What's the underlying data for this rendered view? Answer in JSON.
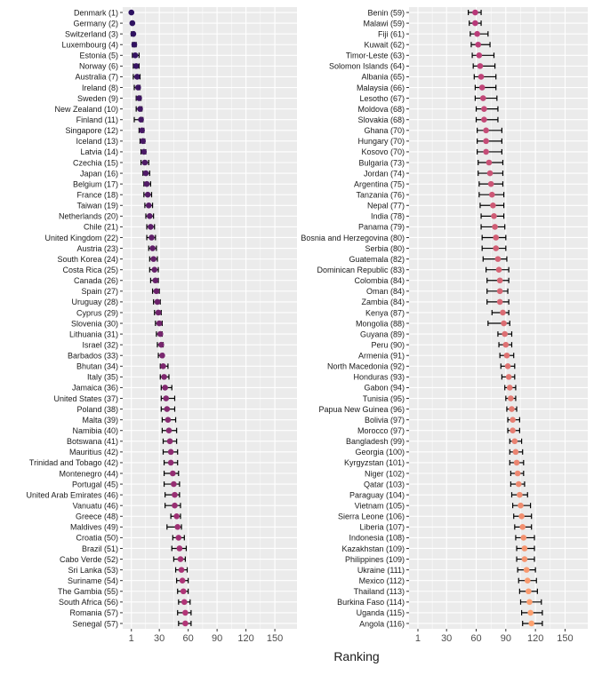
{
  "chart_data": {
    "type": "scatter",
    "xlabel": "Ranking",
    "x_ticks": [
      1,
      30,
      60,
      90,
      120,
      150
    ],
    "xlim": [
      -8,
      173
    ],
    "colors": {
      "panel_background": "#ebebeb",
      "grid": "#ffffff",
      "error_bar": "#000000",
      "gradient_start": "#2c1160",
      "gradient_mid": "#b73779",
      "gradient_end": "#fea16e"
    },
    "panels": [
      {
        "points": [
          {
            "label": "Denmark (1)",
            "value": 1,
            "lower": 1,
            "upper": 1
          },
          {
            "label": "Germany (2)",
            "value": 2,
            "lower": 1,
            "upper": 3
          },
          {
            "label": "Switzerland (3)",
            "value": 3,
            "lower": 1,
            "upper": 4
          },
          {
            "label": "Luxembourg (4)",
            "value": 4,
            "lower": 2,
            "upper": 6
          },
          {
            "label": "Estonia (5)",
            "value": 5,
            "lower": 2,
            "upper": 9
          },
          {
            "label": "Norway (6)",
            "value": 6,
            "lower": 3,
            "upper": 9
          },
          {
            "label": "Australia (7)",
            "value": 7,
            "lower": 3,
            "upper": 10
          },
          {
            "label": "Ireland (8)",
            "value": 8,
            "lower": 4,
            "upper": 10
          },
          {
            "label": "Sweden (9)",
            "value": 9,
            "lower": 6,
            "upper": 11
          },
          {
            "label": "New Zealand (10)",
            "value": 10,
            "lower": 6,
            "upper": 12
          },
          {
            "label": "Finland (11)",
            "value": 11,
            "lower": 4,
            "upper": 13
          },
          {
            "label": "Singapore (12)",
            "value": 12,
            "lower": 9,
            "upper": 14
          },
          {
            "label": "Iceland (13)",
            "value": 13,
            "lower": 10,
            "upper": 15
          },
          {
            "label": "Latvia (14)",
            "value": 14,
            "lower": 11,
            "upper": 16
          },
          {
            "label": "Czechia (15)",
            "value": 15,
            "lower": 11,
            "upper": 19
          },
          {
            "label": "Japan (16)",
            "value": 16,
            "lower": 13,
            "upper": 20
          },
          {
            "label": "Belgium (17)",
            "value": 17,
            "lower": 14,
            "upper": 21
          },
          {
            "label": "France (18)",
            "value": 18,
            "lower": 14,
            "upper": 22
          },
          {
            "label": "Taiwan (19)",
            "value": 19,
            "lower": 15,
            "upper": 23
          },
          {
            "label": "Netherlands (20)",
            "value": 20,
            "lower": 16,
            "upper": 24
          },
          {
            "label": "Chile (21)",
            "value": 21,
            "lower": 17,
            "upper": 25
          },
          {
            "label": "United Kingdom (22)",
            "value": 22,
            "lower": 17,
            "upper": 26
          },
          {
            "label": "Austria (23)",
            "value": 23,
            "lower": 19,
            "upper": 27
          },
          {
            "label": "South Korea (24)",
            "value": 24,
            "lower": 20,
            "upper": 28
          },
          {
            "label": "Costa Rica (25)",
            "value": 25,
            "lower": 20,
            "upper": 29
          },
          {
            "label": "Canada (26)",
            "value": 26,
            "lower": 21,
            "upper": 29
          },
          {
            "label": "Spain (27)",
            "value": 27,
            "lower": 23,
            "upper": 30
          },
          {
            "label": "Uruguay (28)",
            "value": 28,
            "lower": 24,
            "upper": 31
          },
          {
            "label": "Cyprus (29)",
            "value": 29,
            "lower": 25,
            "upper": 32
          },
          {
            "label": "Slovenia (30)",
            "value": 30,
            "lower": 26,
            "upper": 33
          },
          {
            "label": "Lithuania (31)",
            "value": 31,
            "lower": 27,
            "upper": 33
          },
          {
            "label": "Israel (32)",
            "value": 32,
            "lower": 28,
            "upper": 34
          },
          {
            "label": "Barbados (33)",
            "value": 33,
            "lower": 29,
            "upper": 34
          },
          {
            "label": "Bhutan (34)",
            "value": 34,
            "lower": 31,
            "upper": 39
          },
          {
            "label": "Italy (35)",
            "value": 35,
            "lower": 31,
            "upper": 40
          },
          {
            "label": "Jamaica (36)",
            "value": 36,
            "lower": 32,
            "upper": 43
          },
          {
            "label": "United States (37)",
            "value": 37,
            "lower": 32,
            "upper": 46
          },
          {
            "label": "Poland (38)",
            "value": 38,
            "lower": 32,
            "upper": 46
          },
          {
            "label": "Malta (39)",
            "value": 39,
            "lower": 33,
            "upper": 47
          },
          {
            "label": "Namibia (40)",
            "value": 40,
            "lower": 33,
            "upper": 48
          },
          {
            "label": "Botswana (41)",
            "value": 41,
            "lower": 34,
            "upper": 48
          },
          {
            "label": "Mauritius (42)",
            "value": 42,
            "lower": 34,
            "upper": 49
          },
          {
            "label": "Trinidad and Tobago (42)",
            "value": 42,
            "lower": 35,
            "upper": 49
          },
          {
            "label": "Montenegro (44)",
            "value": 44,
            "lower": 35,
            "upper": 50
          },
          {
            "label": "Portugal (45)",
            "value": 45,
            "lower": 35,
            "upper": 51
          },
          {
            "label": "United Arab Emirates (46)",
            "value": 46,
            "lower": 36,
            "upper": 51
          },
          {
            "label": "Vanuatu (46)",
            "value": 46,
            "lower": 36,
            "upper": 52
          },
          {
            "label": "Greece (48)",
            "value": 48,
            "lower": 42,
            "upper": 52
          },
          {
            "label": "Maldives (49)",
            "value": 49,
            "lower": 38,
            "upper": 53
          },
          {
            "label": "Croatia (50)",
            "value": 50,
            "lower": 44,
            "upper": 56
          },
          {
            "label": "Brazil (51)",
            "value": 51,
            "lower": 43,
            "upper": 58
          },
          {
            "label": "Cabo Verde (52)",
            "value": 52,
            "lower": 45,
            "upper": 57
          },
          {
            "label": "Sri Lanka (53)",
            "value": 53,
            "lower": 47,
            "upper": 59
          },
          {
            "label": "Suriname (54)",
            "value": 54,
            "lower": 48,
            "upper": 60
          },
          {
            "label": "The Gambia (55)",
            "value": 55,
            "lower": 49,
            "upper": 60
          },
          {
            "label": "South Africa (56)",
            "value": 56,
            "lower": 50,
            "upper": 62
          },
          {
            "label": "Romania (57)",
            "value": 57,
            "lower": 49,
            "upper": 63
          },
          {
            "label": "Senegal (57)",
            "value": 57,
            "lower": 50,
            "upper": 63
          }
        ]
      },
      {
        "points": [
          {
            "label": "Benin (59)",
            "value": 59,
            "lower": 52,
            "upper": 65
          },
          {
            "label": "Malawi (59)",
            "value": 59,
            "lower": 53,
            "upper": 65
          },
          {
            "label": "Fiji (61)",
            "value": 61,
            "lower": 54,
            "upper": 72
          },
          {
            "label": "Kuwait (62)",
            "value": 62,
            "lower": 55,
            "upper": 74
          },
          {
            "label": "Timor-Leste (63)",
            "value": 63,
            "lower": 56,
            "upper": 78
          },
          {
            "label": "Solomon Islands (64)",
            "value": 64,
            "lower": 57,
            "upper": 79
          },
          {
            "label": "Albania (65)",
            "value": 65,
            "lower": 58,
            "upper": 80
          },
          {
            "label": "Malaysia (66)",
            "value": 66,
            "lower": 59,
            "upper": 80
          },
          {
            "label": "Lesotho (67)",
            "value": 67,
            "lower": 59,
            "upper": 81
          },
          {
            "label": "Moldova (68)",
            "value": 68,
            "lower": 60,
            "upper": 82
          },
          {
            "label": "Slovakia (68)",
            "value": 68,
            "lower": 60,
            "upper": 82
          },
          {
            "label": "Ghana (70)",
            "value": 70,
            "lower": 61,
            "upper": 86
          },
          {
            "label": "Hungary (70)",
            "value": 70,
            "lower": 61,
            "upper": 86
          },
          {
            "label": "Kosovo (70)",
            "value": 70,
            "lower": 61,
            "upper": 86
          },
          {
            "label": "Bulgaria (73)",
            "value": 73,
            "lower": 62,
            "upper": 87
          },
          {
            "label": "Jordan (74)",
            "value": 74,
            "lower": 62,
            "upper": 87
          },
          {
            "label": "Argentina (75)",
            "value": 75,
            "lower": 63,
            "upper": 87
          },
          {
            "label": "Tanzania (76)",
            "value": 76,
            "lower": 63,
            "upper": 88
          },
          {
            "label": "Nepal (77)",
            "value": 77,
            "lower": 64,
            "upper": 88
          },
          {
            "label": "India (78)",
            "value": 78,
            "lower": 65,
            "upper": 88
          },
          {
            "label": "Panama (79)",
            "value": 79,
            "lower": 65,
            "upper": 89
          },
          {
            "label": "Bosnia and Herzegovina (80)",
            "value": 80,
            "lower": 66,
            "upper": 90
          },
          {
            "label": "Serbia (80)",
            "value": 80,
            "lower": 66,
            "upper": 90
          },
          {
            "label": "Guatemala (82)",
            "value": 82,
            "lower": 67,
            "upper": 91
          },
          {
            "label": "Dominican Republic (83)",
            "value": 83,
            "lower": 70,
            "upper": 93
          },
          {
            "label": "Colombia (84)",
            "value": 84,
            "lower": 71,
            "upper": 93
          },
          {
            "label": "Oman (84)",
            "value": 84,
            "lower": 71,
            "upper": 92
          },
          {
            "label": "Zambia (84)",
            "value": 84,
            "lower": 71,
            "upper": 93
          },
          {
            "label": "Kenya (87)",
            "value": 87,
            "lower": 76,
            "upper": 93
          },
          {
            "label": "Mongolia (88)",
            "value": 88,
            "lower": 72,
            "upper": 94
          },
          {
            "label": "Guyana (89)",
            "value": 89,
            "lower": 82,
            "upper": 96
          },
          {
            "label": "Peru (90)",
            "value": 90,
            "lower": 83,
            "upper": 96
          },
          {
            "label": "Armenia (91)",
            "value": 91,
            "lower": 84,
            "upper": 98
          },
          {
            "label": "North Macedonia (92)",
            "value": 92,
            "lower": 85,
            "upper": 99
          },
          {
            "label": "Honduras (93)",
            "value": 93,
            "lower": 86,
            "upper": 99
          },
          {
            "label": "Gabon (94)",
            "value": 94,
            "lower": 89,
            "upper": 100
          },
          {
            "label": "Tunisia (95)",
            "value": 95,
            "lower": 90,
            "upper": 100
          },
          {
            "label": "Papua New Guinea (96)",
            "value": 96,
            "lower": 91,
            "upper": 101
          },
          {
            "label": "Bolivia (97)",
            "value": 97,
            "lower": 92,
            "upper": 104
          },
          {
            "label": "Morocco (97)",
            "value": 97,
            "lower": 92,
            "upper": 104
          },
          {
            "label": "Bangladesh (99)",
            "value": 99,
            "lower": 94,
            "upper": 106
          },
          {
            "label": "Georgia (100)",
            "value": 100,
            "lower": 94,
            "upper": 107
          },
          {
            "label": "Kyrgyzstan (101)",
            "value": 101,
            "lower": 94,
            "upper": 108
          },
          {
            "label": "Niger (102)",
            "value": 102,
            "lower": 95,
            "upper": 108
          },
          {
            "label": "Qatar (103)",
            "value": 103,
            "lower": 95,
            "upper": 109
          },
          {
            "label": "Paraguay (104)",
            "value": 104,
            "lower": 96,
            "upper": 112
          },
          {
            "label": "Vietnam (105)",
            "value": 105,
            "lower": 97,
            "upper": 115
          },
          {
            "label": "Sierra Leone (106)",
            "value": 106,
            "lower": 98,
            "upper": 116
          },
          {
            "label": "Liberia (107)",
            "value": 107,
            "lower": 99,
            "upper": 116
          },
          {
            "label": "Indonesia (108)",
            "value": 108,
            "lower": 100,
            "upper": 119
          },
          {
            "label": "Kazakhstan (109)",
            "value": 109,
            "lower": 101,
            "upper": 119
          },
          {
            "label": "Philippines (109)",
            "value": 109,
            "lower": 101,
            "upper": 119
          },
          {
            "label": "Ukraine (111)",
            "value": 111,
            "lower": 102,
            "upper": 120
          },
          {
            "label": "Mexico (112)",
            "value": 112,
            "lower": 103,
            "upper": 121
          },
          {
            "label": "Thailand (113)",
            "value": 113,
            "lower": 104,
            "upper": 122
          },
          {
            "label": "Burkina Faso (114)",
            "value": 114,
            "lower": 105,
            "upper": 126
          },
          {
            "label": "Uganda (115)",
            "value": 115,
            "lower": 106,
            "upper": 127
          },
          {
            "label": "Angola (116)",
            "value": 116,
            "lower": 107,
            "upper": 127
          }
        ]
      }
    ]
  }
}
